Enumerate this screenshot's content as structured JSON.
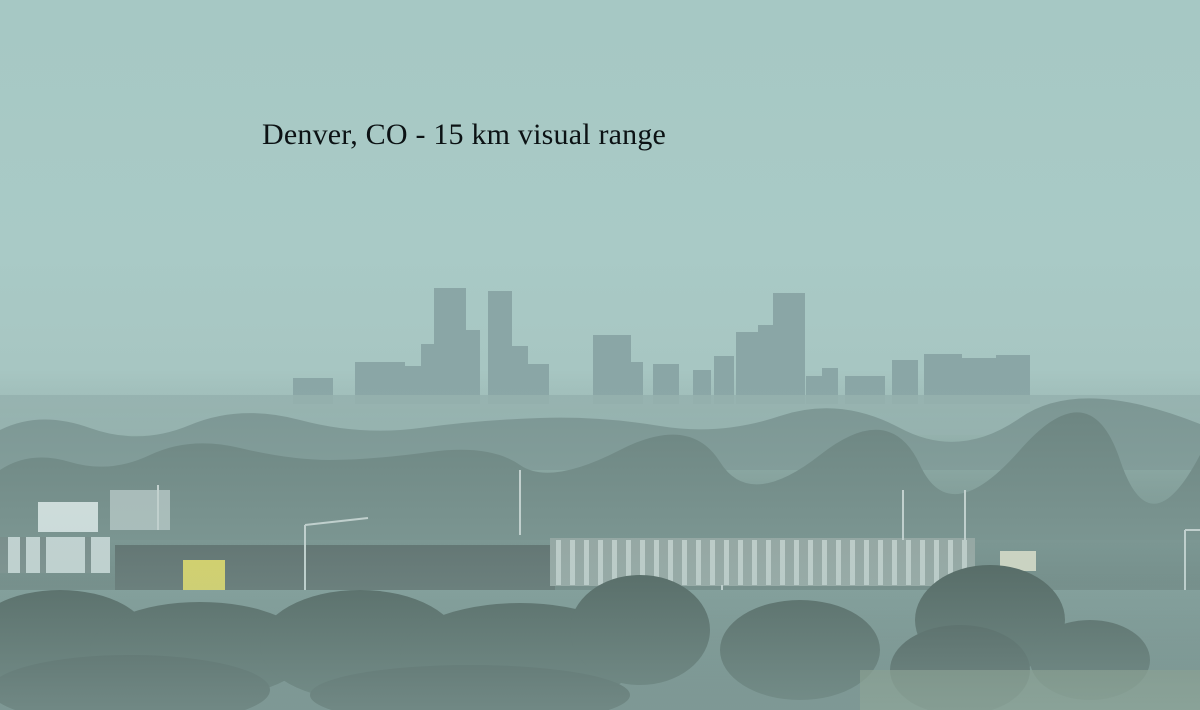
{
  "caption": {
    "text": "Denver, CO - 15 km visual range"
  },
  "scene": {
    "subject": "downtown-skyline-through-haze",
    "colors": {
      "sky": "#a9cac6",
      "distant_buildings": "#8aa7a6",
      "mid_haze": "#7f9a95",
      "trees": "#3f514e",
      "foreground": "#4f625f",
      "caption_text": "#0c1214",
      "yellow_sign": "#e8d64a"
    }
  }
}
